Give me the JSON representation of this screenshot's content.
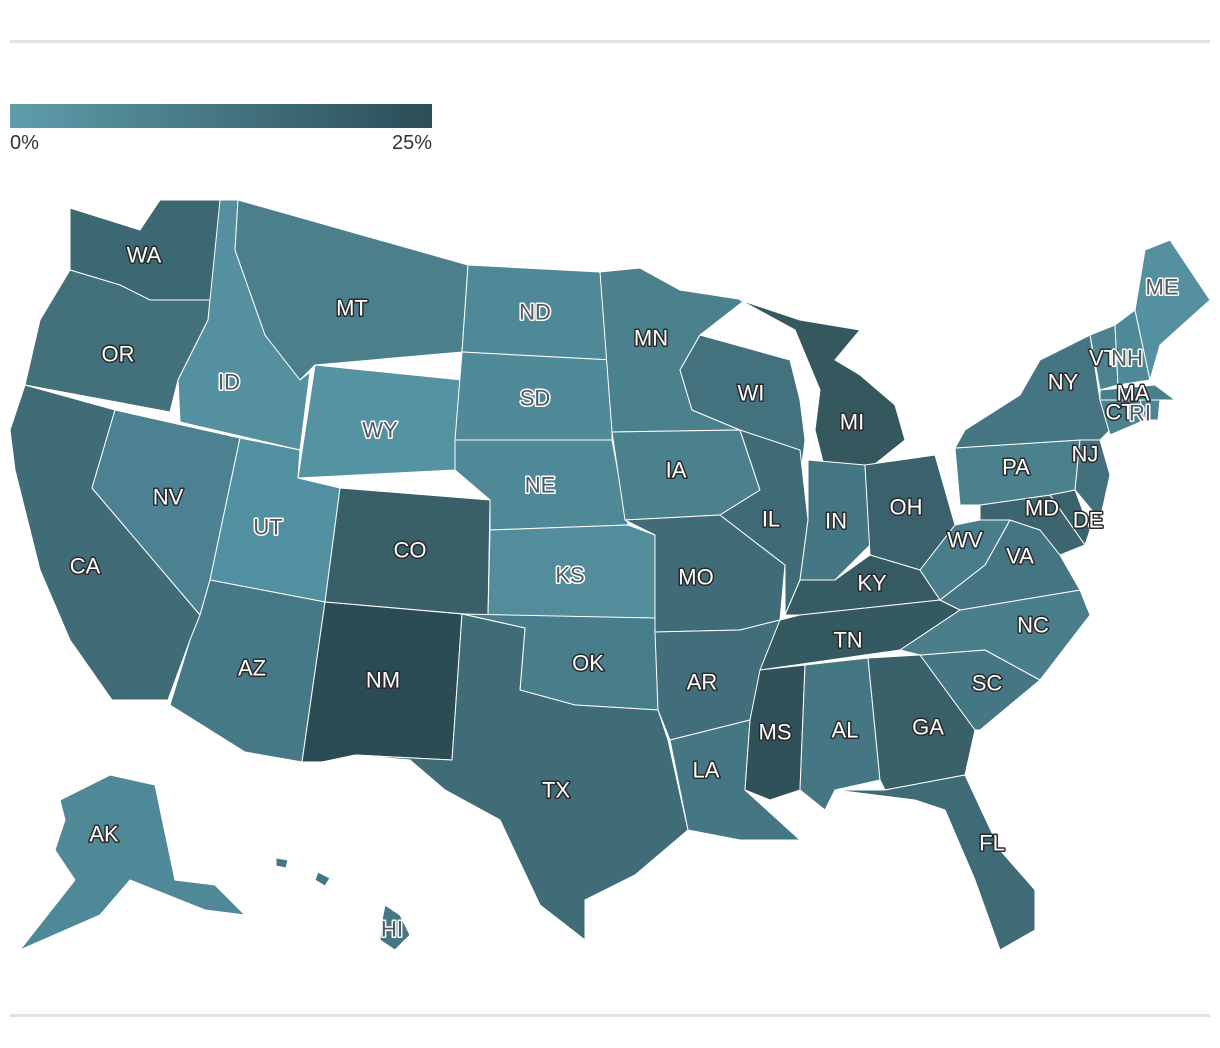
{
  "legend": {
    "min_label": "0%",
    "max_label": "25%",
    "color_low": "#5e9dab",
    "color_high": "#2b4d57"
  },
  "map": {
    "type": "choropleth",
    "states": [
      {
        "abbr": "WA",
        "fill": "#3c6873",
        "label_style": "dark"
      },
      {
        "abbr": "OR",
        "fill": "#42707b",
        "label_style": "dark"
      },
      {
        "abbr": "CA",
        "fill": "#3f6c77",
        "label_style": "dark"
      },
      {
        "abbr": "ID",
        "fill": "#5590a0",
        "label_style": "light"
      },
      {
        "abbr": "NV",
        "fill": "#4b8190",
        "label_style": "dark"
      },
      {
        "abbr": "MT",
        "fill": "#4b7f8b",
        "label_style": "dark"
      },
      {
        "abbr": "WY",
        "fill": "#5592a2",
        "label_style": "light"
      },
      {
        "abbr": "UT",
        "fill": "#5190a0",
        "label_style": "light"
      },
      {
        "abbr": "AZ",
        "fill": "#467987",
        "label_style": "dark"
      },
      {
        "abbr": "CO",
        "fill": "#395f69",
        "label_style": "dark"
      },
      {
        "abbr": "NM",
        "fill": "#2c4c55",
        "label_style": "dark"
      },
      {
        "abbr": "ND",
        "fill": "#4f8896",
        "label_style": "light"
      },
      {
        "abbr": "SD",
        "fill": "#508a98",
        "label_style": "light"
      },
      {
        "abbr": "NE",
        "fill": "#4f8896",
        "label_style": "light"
      },
      {
        "abbr": "KS",
        "fill": "#538d9c",
        "label_style": "light"
      },
      {
        "abbr": "OK",
        "fill": "#487e8c",
        "label_style": "dark"
      },
      {
        "abbr": "TX",
        "fill": "#406c78",
        "label_style": "dark"
      },
      {
        "abbr": "MN",
        "fill": "#4b808d",
        "label_style": "dark"
      },
      {
        "abbr": "IA",
        "fill": "#4b818e",
        "label_style": "dark"
      },
      {
        "abbr": "MO",
        "fill": "#406c78",
        "label_style": "dark"
      },
      {
        "abbr": "AR",
        "fill": "#416e7a",
        "label_style": "dark"
      },
      {
        "abbr": "LA",
        "fill": "#457684",
        "label_style": "dark"
      },
      {
        "abbr": "WI",
        "fill": "#43727e",
        "label_style": "dark"
      },
      {
        "abbr": "IL",
        "fill": "#3f6b77",
        "label_style": "dark"
      },
      {
        "abbr": "MI",
        "fill": "#35585f",
        "label_style": "dark"
      },
      {
        "abbr": "IN",
        "fill": "#457684",
        "label_style": "dark"
      },
      {
        "abbr": "OH",
        "fill": "#3b626c",
        "label_style": "dark"
      },
      {
        "abbr": "KY",
        "fill": "#365a62",
        "label_style": "dark"
      },
      {
        "abbr": "TN",
        "fill": "#355960",
        "label_style": "dark"
      },
      {
        "abbr": "MS",
        "fill": "#30515a",
        "label_style": "dark"
      },
      {
        "abbr": "AL",
        "fill": "#457684",
        "label_style": "dark"
      },
      {
        "abbr": "GA",
        "fill": "#3a606a",
        "label_style": "dark"
      },
      {
        "abbr": "FL",
        "fill": "#3f6b77",
        "label_style": "dark"
      },
      {
        "abbr": "SC",
        "fill": "#457684",
        "label_style": "dark"
      },
      {
        "abbr": "NC",
        "fill": "#4a7e8b",
        "label_style": "dark"
      },
      {
        "abbr": "VA",
        "fill": "#457583",
        "label_style": "dark"
      },
      {
        "abbr": "WV",
        "fill": "#4a7d8b",
        "label_style": "dark"
      },
      {
        "abbr": "MD",
        "fill": "#3c6570",
        "label_style": "dark"
      },
      {
        "abbr": "DE",
        "fill": "#3a626c",
        "label_style": "dark"
      },
      {
        "abbr": "PA",
        "fill": "#4b808d",
        "label_style": "dark"
      },
      {
        "abbr": "NJ",
        "fill": "#42717d",
        "label_style": "dark"
      },
      {
        "abbr": "NY",
        "fill": "#457583",
        "label_style": "dark"
      },
      {
        "abbr": "CT",
        "fill": "#4d8391",
        "label_style": "dark"
      },
      {
        "abbr": "RI",
        "fill": "#4e8593",
        "label_style": "light"
      },
      {
        "abbr": "MA",
        "fill": "#4a7f8c",
        "label_style": "dark"
      },
      {
        "abbr": "VT",
        "fill": "#4d8391",
        "label_style": "dark"
      },
      {
        "abbr": "NH",
        "fill": "#4f8897",
        "label_style": "light"
      },
      {
        "abbr": "ME",
        "fill": "#5590a0",
        "label_style": "light"
      },
      {
        "abbr": "AK",
        "fill": "#4f8896",
        "label_style": "dark"
      },
      {
        "abbr": "HI",
        "fill": "#457684",
        "label_style": "light"
      }
    ]
  }
}
